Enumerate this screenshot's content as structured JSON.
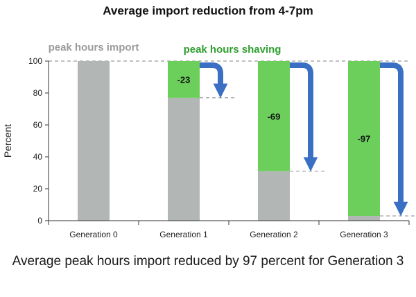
{
  "chart_data": {
    "type": "bar",
    "title": "Average import reduction from 4-7pm",
    "xlabel": "",
    "ylabel": "Percent",
    "ylim": [
      0,
      100
    ],
    "yticks": [
      0,
      20,
      40,
      60,
      80,
      100
    ],
    "categories": [
      "Generation 0",
      "Generation 1",
      "Generation 2",
      "Generation 3"
    ],
    "series": [
      {
        "name": "peak hours import",
        "values": [
          100,
          77,
          31,
          3
        ]
      },
      {
        "name": "peak hours shaving",
        "values": [
          0,
          23,
          69,
          97
        ]
      }
    ],
    "data_labels": [
      "",
      "-23",
      "-69",
      "-97"
    ],
    "legend_position": "top (inline text labels)",
    "grid": false,
    "reference_line": 100,
    "colors": {
      "import": "#b2b6b4",
      "shaving": "#6ccf5c",
      "arrow": "#3a6fc4",
      "import_label": "#9b9b9b",
      "shaving_label": "#2f9e2f"
    }
  },
  "caption": "Average peak hours import reduced by 97 percent for Generation 3"
}
